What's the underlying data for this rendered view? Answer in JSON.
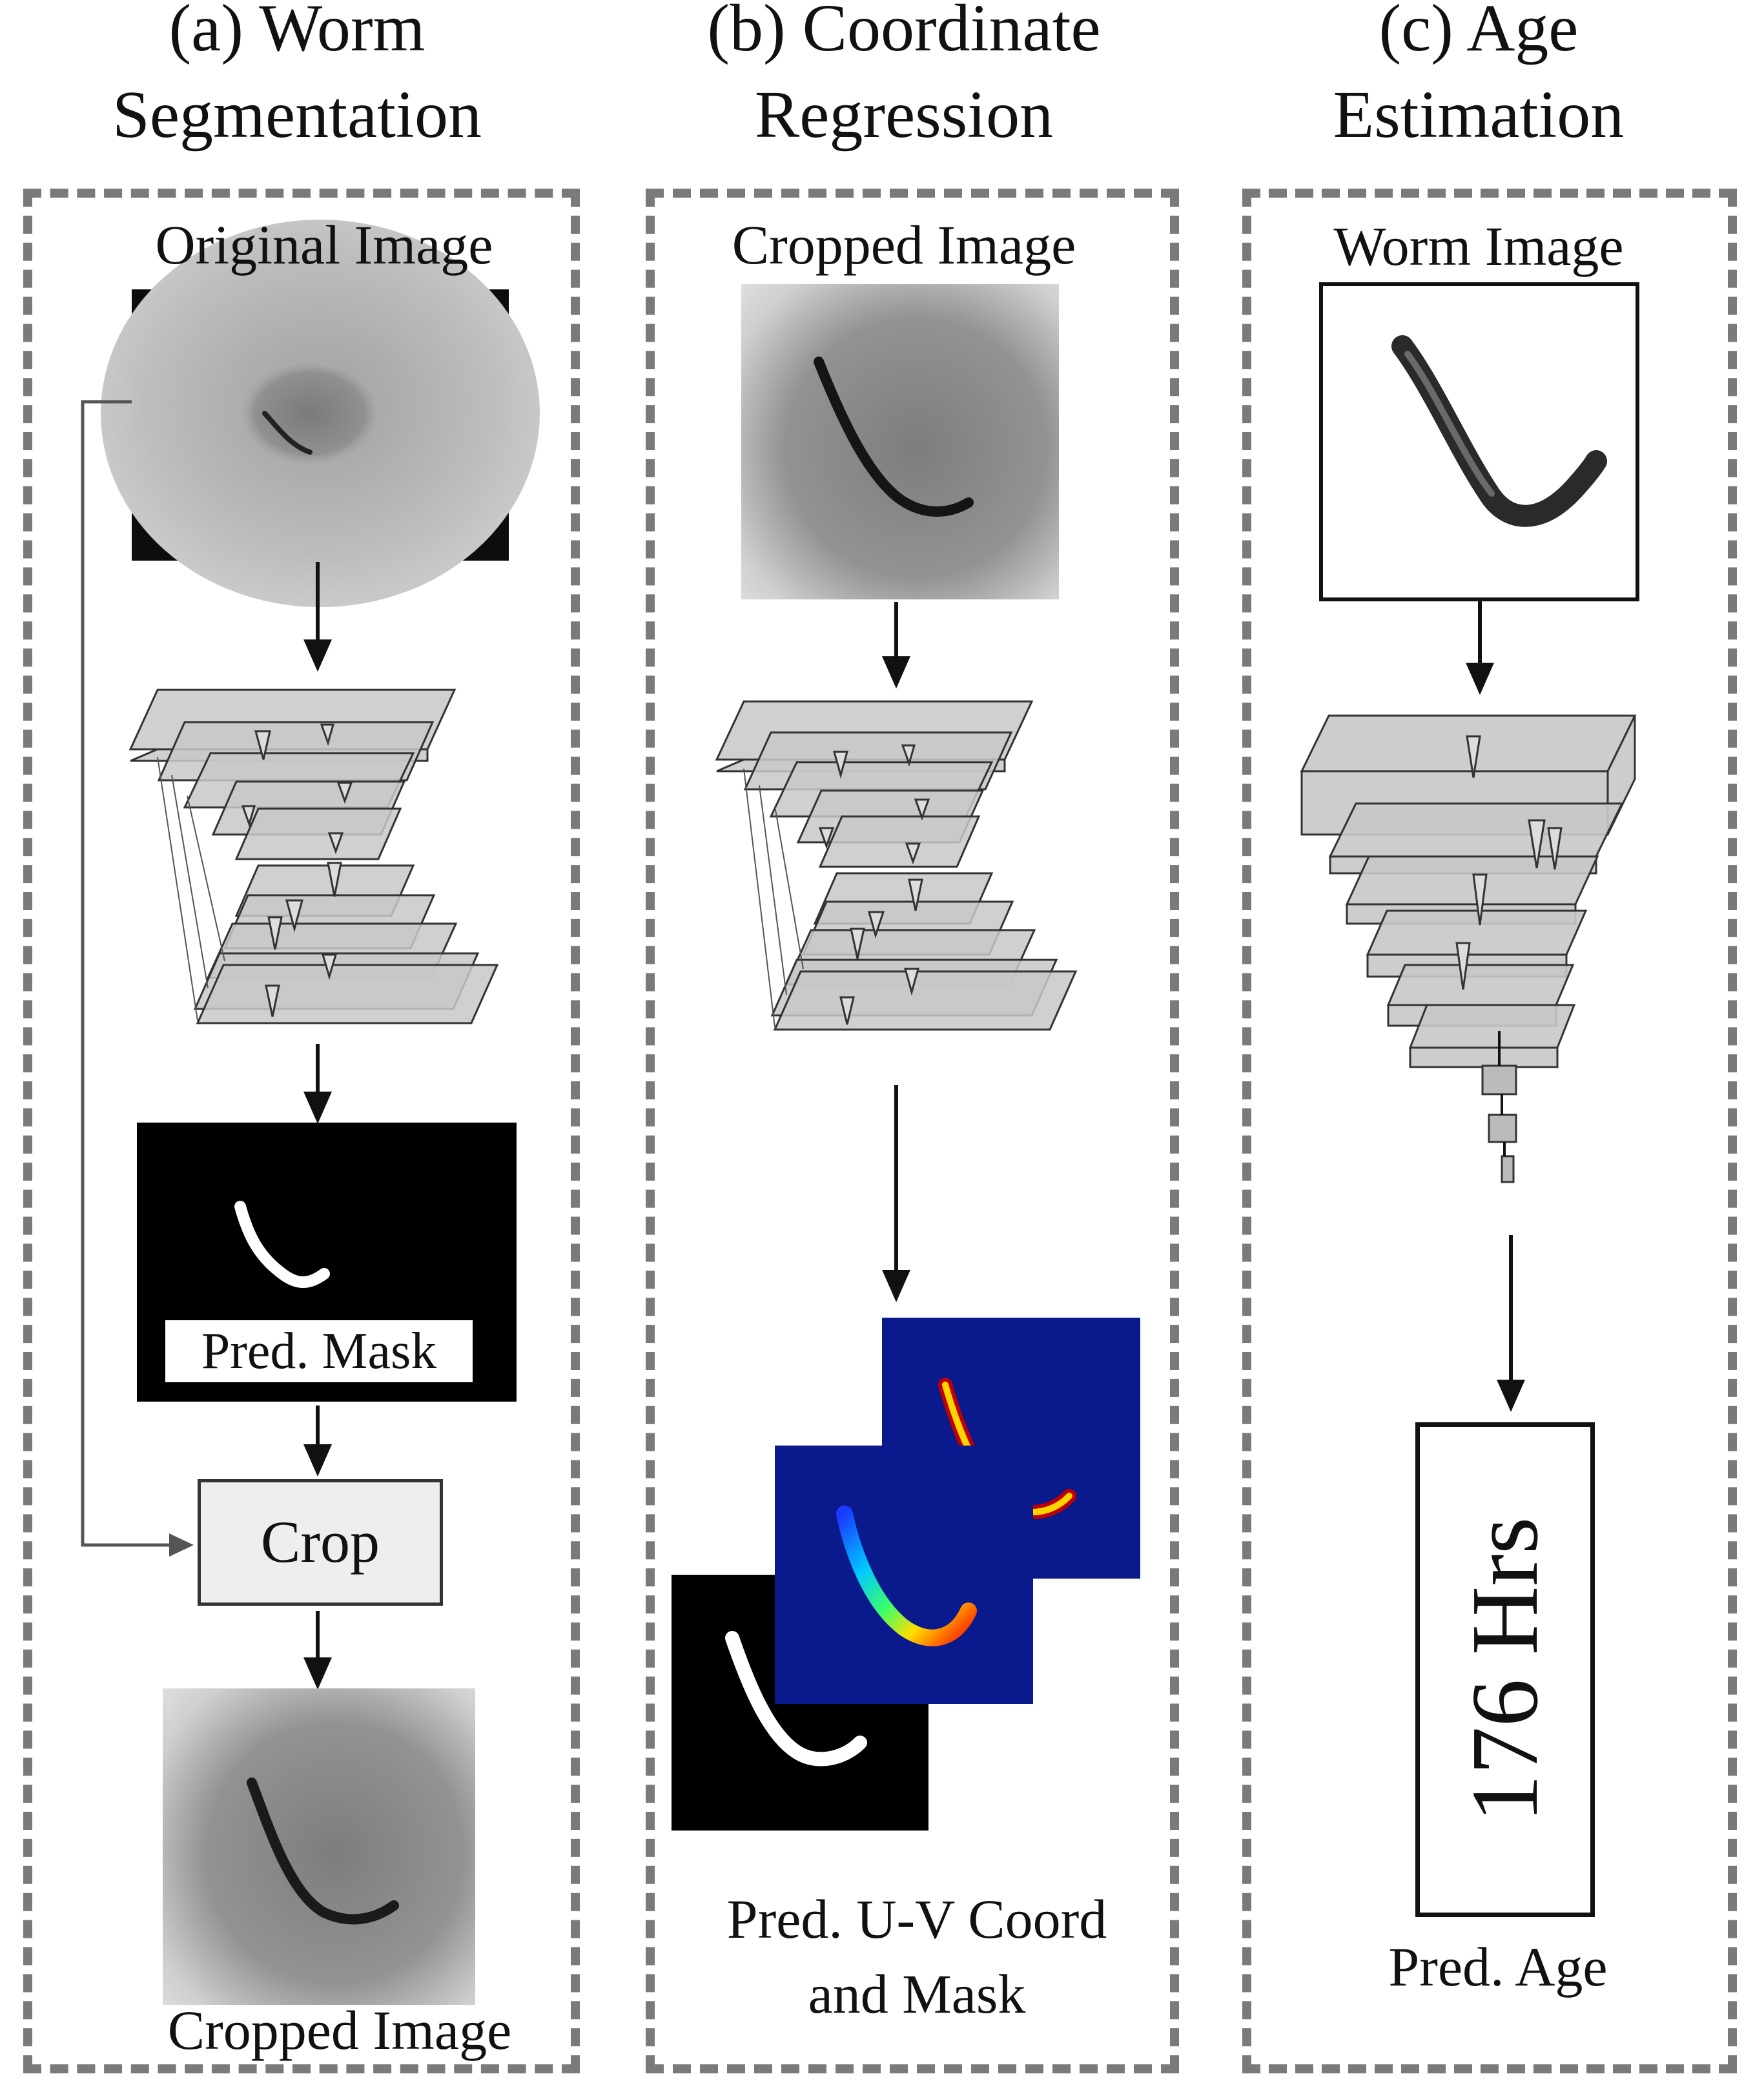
{
  "panels": [
    {
      "id": "a",
      "title_line1": "(a) Worm",
      "title_line2": "Segmentation"
    },
    {
      "id": "b",
      "title_line1": "(b) Coordinate",
      "title_line2": "Regression"
    },
    {
      "id": "c",
      "title_line1": "(c) Age",
      "title_line2": "Estimation"
    }
  ],
  "panel_a": {
    "original_image_label": "Original Image",
    "pred_mask_label": "Pred.  Mask",
    "crop_label": "Crop",
    "cropped_image_label": "Cropped Image"
  },
  "panel_b": {
    "cropped_image_label": "Cropped Image",
    "output_label_line1": "Pred. U-V Coord",
    "output_label_line2": "and Mask"
  },
  "panel_c": {
    "worm_image_label": "Worm Image",
    "age_value": "176 Hrs",
    "pred_age_label": "Pred. Age"
  },
  "colors": {
    "dashed_border": "#7a7a7a",
    "network_plate": "#c8c8c8",
    "uv_background": "#0a1a8c"
  }
}
